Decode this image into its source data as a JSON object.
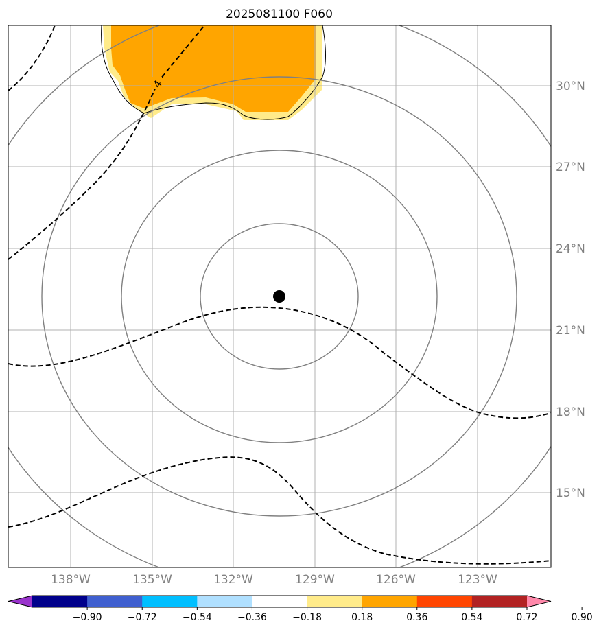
{
  "title": "2025081100 F060",
  "map": {
    "lat_labels": [
      "30°N",
      "27°N",
      "24°N",
      "21°N",
      "18°N",
      "15°N"
    ],
    "lon_labels": [
      "138°W",
      "135°W",
      "132°W",
      "129°W",
      "126°W",
      "123°W"
    ],
    "storm_center": {
      "lat": 22.3,
      "lon": -130.2
    },
    "range_rings_count": 4,
    "contour_label": "4",
    "shading": {
      "level_orange": 0.54,
      "level_yellow": 0.36
    }
  },
  "colorbar": {
    "colors": [
      "#9933cc",
      "#00008b",
      "#3f5fcf",
      "#00bfff",
      "#b0e0ff",
      "#ffffff",
      "#ffeb8a",
      "#ffa500",
      "#ff4500",
      "#b22222",
      "#ff88aa"
    ],
    "tick_labels": [
      "−0.90",
      "−0.72",
      "−0.54",
      "−0.36",
      "−0.18",
      "0.18",
      "0.36",
      "0.54",
      "0.72",
      "0.90"
    ]
  }
}
